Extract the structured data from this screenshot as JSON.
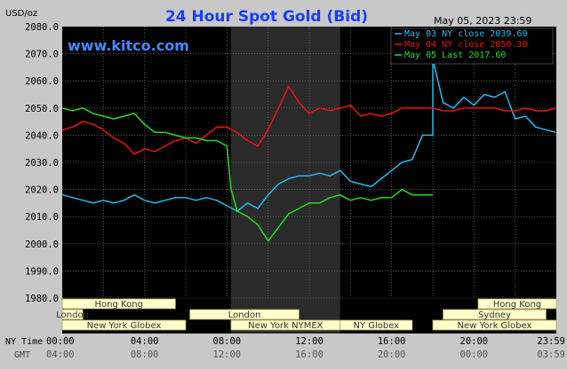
{
  "chart_data": {
    "type": "line",
    "title": "24 Hour Spot Gold (Bid)",
    "watermark": "www.kitco.com",
    "date_label": "May 05, 2023 23:59",
    "y_unit_label": "USD/oz",
    "ylim": [
      1980,
      2080
    ],
    "y_ticks": [
      "1980.0",
      "1990.0",
      "2000.0",
      "2010.0",
      "2020.0",
      "2030.0",
      "2040.0",
      "2050.0",
      "2060.0",
      "2070.0",
      "2080.0"
    ],
    "x_range_hours": [
      0,
      24
    ],
    "x_ticks_ny": [
      "00:00",
      "04:00",
      "08:00",
      "12:00",
      "16:00",
      "20:00",
      "23:59"
    ],
    "x_ticks_gmt": [
      "04:00",
      "08:00",
      "12:00",
      "16:00",
      "20:00",
      "00:00",
      "03:59"
    ],
    "x_axis_ny_label": "NY Time",
    "x_axis_gmt_label": "GMT",
    "grid": true,
    "legend_position": "top-right",
    "series": [
      {
        "name": "May 03 NY close 2039.60",
        "color": "#22bbee",
        "x": [
          0,
          0.5,
          1,
          1.5,
          2,
          2.5,
          3,
          3.5,
          4,
          4.5,
          5,
          5.5,
          6,
          6.5,
          7,
          7.5,
          8,
          8.5,
          9,
          9.5,
          10,
          10.5,
          11,
          11.5,
          12,
          12.5,
          13,
          13.5,
          14,
          14.5,
          15,
          15.5,
          16,
          16.5,
          17,
          17.5,
          18,
          18,
          18.5,
          19,
          19.5,
          20,
          20.5,
          21,
          21.5,
          22,
          22.5,
          23,
          23.5,
          23.98
        ],
        "y": [
          2018,
          2017,
          2016,
          2015,
          2016,
          2015,
          2016,
          2018,
          2016,
          2015,
          2016,
          2017,
          2017,
          2016,
          2017,
          2016,
          2014,
          2012,
          2015,
          2013,
          2018,
          2022,
          2024,
          2025,
          2025,
          2026,
          2025,
          2027,
          2023,
          2022,
          2021,
          2024,
          2027,
          2030,
          2031,
          2040,
          2040,
          2068,
          2052,
          2050,
          2054,
          2051,
          2055,
          2054,
          2056,
          2046,
          2047,
          2043,
          2042,
          2041
        ]
      },
      {
        "name": "May 04 NY close 2050.30",
        "color": "#ee1111",
        "x": [
          0,
          0.5,
          1,
          1.5,
          2,
          2.5,
          3,
          3.5,
          4,
          4.5,
          5,
          5.5,
          6,
          6.5,
          7,
          7.5,
          8,
          8.5,
          9,
          9.5,
          10,
          10.5,
          11,
          11.5,
          12,
          12.5,
          13,
          13.5,
          14,
          14.5,
          15,
          15.5,
          16,
          16.5,
          17,
          17.5,
          18,
          18.5,
          19,
          19.5,
          20,
          20.5,
          21,
          21.5,
          22,
          22.5,
          23,
          23.5,
          23.98
        ],
        "y": [
          2042,
          2043,
          2045,
          2044,
          2042,
          2039,
          2037,
          2033,
          2035,
          2034,
          2036,
          2038,
          2039,
          2037,
          2040,
          2043,
          2043,
          2041,
          2038,
          2036,
          2042,
          2050,
          2058,
          2052,
          2048,
          2050,
          2049,
          2050,
          2051,
          2047,
          2048,
          2047,
          2048,
          2050,
          2050,
          2050,
          2050,
          2049,
          2049,
          2050,
          2050,
          2050,
          2050,
          2049,
          2049,
          2050,
          2049,
          2049,
          2050
        ]
      },
      {
        "name": "May 05 Last 2017.60",
        "color": "#22dd22",
        "x": [
          0,
          0.5,
          1,
          1.5,
          2,
          2.5,
          3,
          3.5,
          4,
          4.5,
          5,
          5.5,
          6,
          6.5,
          7,
          7.5,
          8,
          8.2,
          8.5,
          9,
          9.5,
          10,
          10.5,
          11,
          11.5,
          12,
          12.5,
          13,
          13.5,
          14,
          14.5,
          15,
          15.5,
          16,
          16.5,
          17,
          17.5,
          18
        ],
        "y": [
          2050,
          2049,
          2050,
          2048,
          2047,
          2046,
          2047,
          2048,
          2044,
          2041,
          2041,
          2040,
          2039,
          2039,
          2038,
          2038,
          2036,
          2020,
          2012,
          2010,
          2007,
          2001,
          2006,
          2011,
          2013,
          2015,
          2015,
          2017,
          2018,
          2016,
          2017,
          2016,
          2017,
          2017,
          2020,
          2018,
          2018,
          2018
        ]
      }
    ],
    "session_bars": [
      {
        "label": "Hong Kong",
        "row": 0,
        "segments": [
          [
            0,
            5.5
          ],
          [
            20.2,
            24
          ]
        ]
      },
      {
        "label": "London",
        "row": 1,
        "segments": [
          [
            0,
            1
          ],
          [
            6.2,
            11.5
          ]
        ]
      },
      {
        "label": "Sydney",
        "row": 1,
        "segments": [
          [
            18.5,
            23.5
          ]
        ]
      },
      {
        "label": "New York Globex",
        "row": 2,
        "segments": [
          [
            0,
            6
          ],
          [
            18,
            24
          ]
        ]
      },
      {
        "label": "New York NYMEX",
        "row": 2,
        "segments": [
          [
            8.2,
            13.5
          ]
        ]
      },
      {
        "label": "NY Globex",
        "row": 2,
        "segments": [
          [
            13.5,
            17
          ]
        ]
      }
    ],
    "highlight_band_hours": [
      8.2,
      13.5
    ]
  }
}
